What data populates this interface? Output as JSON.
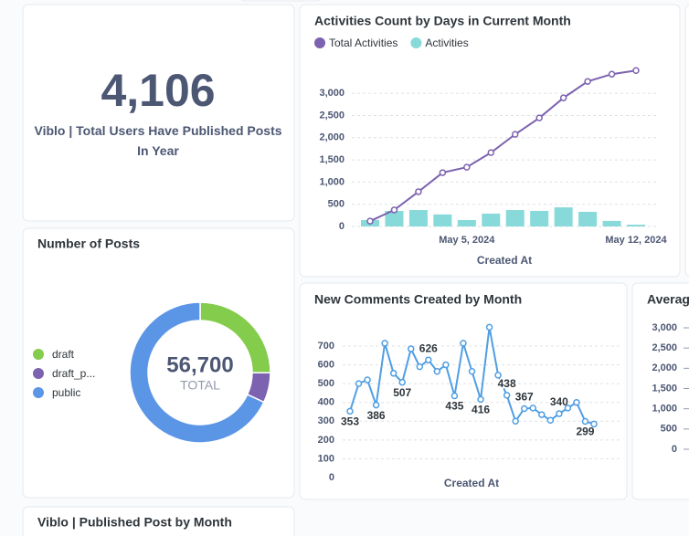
{
  "chart_data": [
    {
      "type": "number",
      "title": "Viblo | Total Users Have Published Posts In Year",
      "value": 4106,
      "value_label": "4,106"
    },
    {
      "type": "combo",
      "title": "Activities Count by Days in Current Month",
      "x": [
        "2024-05-01",
        "2024-05-02",
        "2024-05-03",
        "2024-05-04",
        "2024-05-05",
        "2024-05-06",
        "2024-05-07",
        "2024-05-08",
        "2024-05-09",
        "2024-05-10",
        "2024-05-11",
        "2024-05-12"
      ],
      "xticks": [
        {
          "value": "2024-05-05",
          "label": "May 5, 2024"
        },
        {
          "value": "2024-05-12",
          "label": "May 12, 2024"
        }
      ],
      "x_label": "Created At",
      "series": [
        {
          "name": "Total Activities",
          "color": "#7c62b0",
          "kind": "line",
          "values": [
            120,
            372,
            783,
            1212,
            1335,
            1664,
            2075,
            2445,
            2897,
            3267,
            3431,
            3513
          ]
        },
        {
          "name": "Activities",
          "color": "#88d9d9",
          "kind": "bar",
          "values": [
            145,
            350,
            370,
            270,
            145,
            290,
            370,
            350,
            430,
            330,
            125,
            40
          ]
        }
      ],
      "ylim": [
        0,
        3600
      ],
      "yticks": [
        0,
        500,
        {
          "value": 1000,
          "label": "1,000"
        },
        {
          "value": 1500,
          "label": "1,500"
        },
        {
          "value": 2000,
          "label": "2,000"
        },
        {
          "value": 2500,
          "label": "2,500"
        },
        {
          "value": 3000,
          "label": "3,000"
        }
      ],
      "grid": true,
      "legend": "top"
    },
    {
      "type": "pie",
      "title": "Number of Posts",
      "categories": [
        "draft",
        "draft_p...",
        "public"
      ],
      "values": [
        14200,
        3900,
        38600
      ],
      "colors": [
        "#84cc4c",
        "#7c62b0",
        "#5b96e6"
      ],
      "total": 56700,
      "total_label": "56,700",
      "total_caption": "TOTAL",
      "legend": "left"
    },
    {
      "type": "line",
      "title": "New Comments Created by Month",
      "x_label": "Created At",
      "color": "#509ee3",
      "values": [
        353,
        500,
        520,
        386,
        715,
        555,
        507,
        685,
        590,
        626,
        565,
        600,
        435,
        715,
        565,
        416,
        800,
        545,
        438,
        300,
        367,
        370,
        335,
        305,
        340,
        370,
        400,
        299,
        285
      ],
      "value_labels": [
        353,
        null,
        null,
        386,
        null,
        null,
        507,
        null,
        null,
        626,
        null,
        null,
        435,
        null,
        null,
        416,
        null,
        null,
        438,
        null,
        367,
        null,
        null,
        null,
        340,
        null,
        null,
        299,
        null
      ],
      "ylim": [
        0,
        800
      ],
      "yticks": [
        0,
        100,
        200,
        300,
        400,
        500,
        600,
        700
      ],
      "grid": true
    },
    {
      "type": "line",
      "title": "Average",
      "ylim": [
        0,
        3000
      ],
      "yticks": [
        0,
        500,
        {
          "value": 1000,
          "label": "1,000"
        },
        {
          "value": 1500,
          "label": "1,500"
        },
        {
          "value": 2000,
          "label": "2,000"
        },
        {
          "value": 2500,
          "label": "2,500"
        },
        {
          "value": 3000,
          "label": "3,000"
        }
      ]
    },
    {
      "type": "bar",
      "title": "Viblo | Published Post by Month"
    }
  ]
}
